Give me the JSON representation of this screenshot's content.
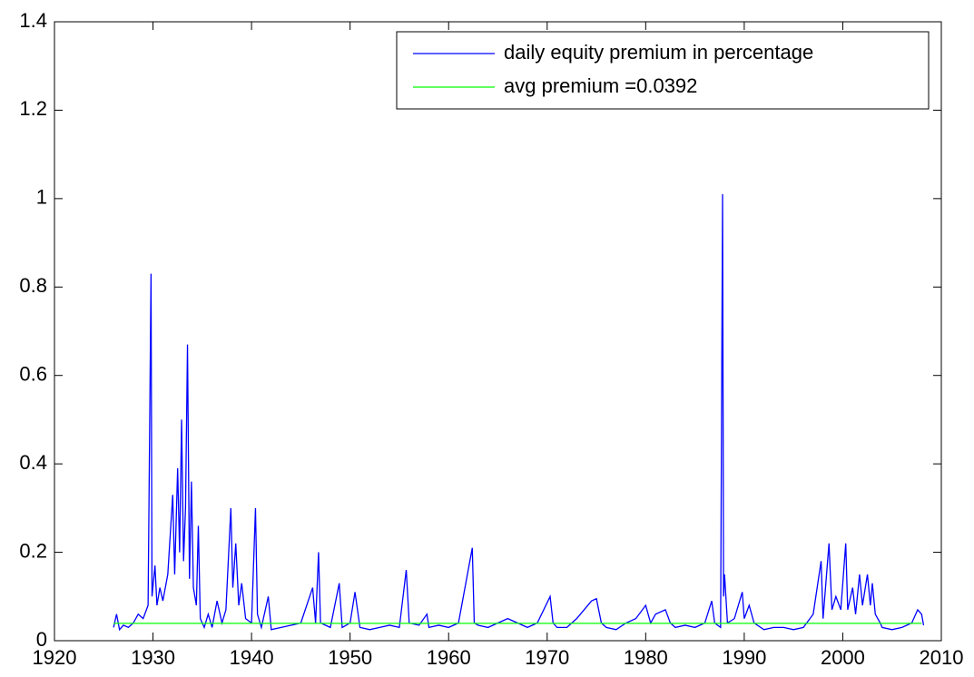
{
  "chart_data": {
    "type": "line",
    "xlim": [
      1920,
      2010
    ],
    "xticks": [
      1920,
      1930,
      1940,
      1950,
      1960,
      1970,
      1980,
      1990,
      2000,
      2010
    ],
    "ylim": [
      0,
      1.4
    ],
    "yticks": [
      0,
      0.2,
      0.4,
      0.6,
      0.8,
      1,
      1.2,
      1.4
    ],
    "legend": "northeast",
    "series": [
      {
        "name": "daily equity premium in percentage",
        "color": "#0000ff",
        "x": [
          1926.0,
          1926.3,
          1926.6,
          1927,
          1927.5,
          1928,
          1928.5,
          1929,
          1929.5,
          1929.8,
          1929.9,
          1930.2,
          1930.4,
          1930.7,
          1931,
          1931.5,
          1932,
          1932.2,
          1932.5,
          1932.7,
          1932.9,
          1933.1,
          1933.3,
          1933.5,
          1933.7,
          1933.9,
          1934.1,
          1934.4,
          1934.6,
          1934.8,
          1935.2,
          1935.6,
          1936,
          1936.5,
          1937,
          1937.4,
          1937.9,
          1938.1,
          1938.4,
          1938.7,
          1939,
          1939.4,
          1940,
          1940.4,
          1940.6,
          1941,
          1941.7,
          1942,
          1943,
          1944,
          1945,
          1946.2,
          1946.5,
          1946.8,
          1947,
          1948,
          1948.9,
          1949.2,
          1950,
          1950.5,
          1951,
          1952,
          1953,
          1954,
          1955,
          1955.7,
          1956,
          1957,
          1957.8,
          1958,
          1959,
          1960,
          1961,
          1962.4,
          1962.6,
          1963,
          1964,
          1965,
          1966,
          1967,
          1968,
          1969,
          1970.3,
          1970.6,
          1971,
          1972,
          1973,
          1974.5,
          1975,
          1975.5,
          1976,
          1977,
          1978,
          1979,
          1980,
          1980.5,
          1981,
          1982,
          1982.5,
          1983,
          1984,
          1985,
          1986,
          1986.7,
          1987,
          1987.6,
          1987.8,
          1987.9,
          1988,
          1988.3,
          1989,
          1989.8,
          1990,
          1990.5,
          1991,
          1992,
          1993,
          1994,
          1995,
          1996,
          1997,
          1997.8,
          1998,
          1998.6,
          1998.9,
          1999.3,
          1999.8,
          2000.3,
          2000.5,
          2001,
          2001.3,
          2001.7,
          2002,
          2002.5,
          2002.8,
          2003,
          2003.3,
          2003.8,
          2004,
          2005,
          2006,
          2007,
          2007.6,
          2008,
          2008.2
        ],
        "values": [
          0.03,
          0.06,
          0.025,
          0.035,
          0.03,
          0.04,
          0.06,
          0.05,
          0.08,
          0.83,
          0.1,
          0.17,
          0.08,
          0.12,
          0.09,
          0.15,
          0.33,
          0.15,
          0.39,
          0.2,
          0.5,
          0.18,
          0.3,
          0.67,
          0.14,
          0.36,
          0.12,
          0.08,
          0.26,
          0.05,
          0.03,
          0.06,
          0.03,
          0.09,
          0.04,
          0.07,
          0.3,
          0.12,
          0.22,
          0.08,
          0.13,
          0.05,
          0.04,
          0.3,
          0.06,
          0.03,
          0.1,
          0.025,
          0.03,
          0.035,
          0.04,
          0.12,
          0.04,
          0.2,
          0.04,
          0.03,
          0.13,
          0.03,
          0.04,
          0.11,
          0.03,
          0.025,
          0.03,
          0.035,
          0.03,
          0.16,
          0.04,
          0.035,
          0.06,
          0.03,
          0.035,
          0.03,
          0.04,
          0.21,
          0.04,
          0.035,
          0.03,
          0.04,
          0.05,
          0.04,
          0.03,
          0.04,
          0.1,
          0.04,
          0.03,
          0.03,
          0.05,
          0.09,
          0.095,
          0.04,
          0.03,
          0.025,
          0.04,
          0.05,
          0.08,
          0.04,
          0.06,
          0.07,
          0.04,
          0.03,
          0.035,
          0.03,
          0.04,
          0.09,
          0.04,
          0.03,
          1.01,
          0.1,
          0.15,
          0.04,
          0.05,
          0.11,
          0.05,
          0.08,
          0.04,
          0.025,
          0.03,
          0.03,
          0.025,
          0.03,
          0.06,
          0.18,
          0.05,
          0.22,
          0.07,
          0.1,
          0.07,
          0.22,
          0.07,
          0.12,
          0.06,
          0.15,
          0.08,
          0.15,
          0.08,
          0.13,
          0.06,
          0.04,
          0.03,
          0.025,
          0.03,
          0.04,
          0.07,
          0.06,
          0.035
        ]
      },
      {
        "name": "avg premium =0.0392",
        "color": "#00ff00",
        "x": [
          1926,
          2008
        ],
        "values": [
          0.0392,
          0.0392
        ]
      }
    ]
  }
}
